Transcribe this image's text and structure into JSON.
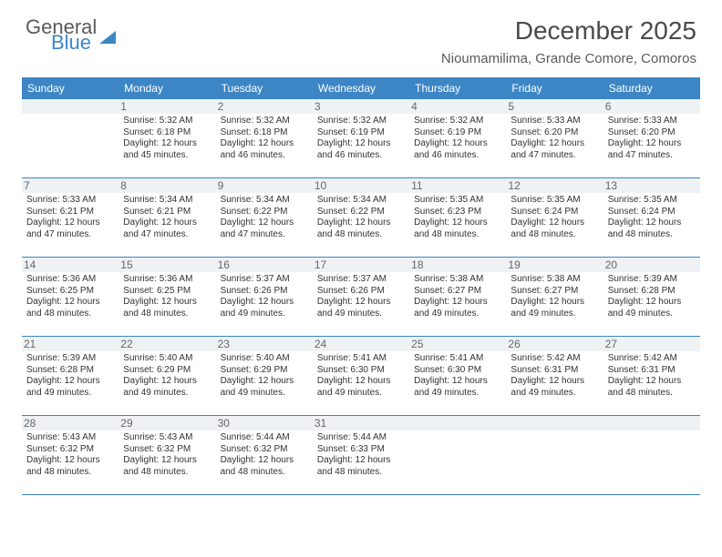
{
  "logo": {
    "word1": "General",
    "word2": "Blue"
  },
  "title": "December 2025",
  "location": "Nioumamilima, Grande Comore, Comoros",
  "colors": {
    "header_bg": "#3d86c6",
    "daynum_bg": "#eef2f5",
    "text": "#333333",
    "title_text": "#4a4a4a",
    "logo_gray": "#5a5a5a",
    "logo_blue": "#3d86c6"
  },
  "daysOfWeek": [
    "Sunday",
    "Monday",
    "Tuesday",
    "Wednesday",
    "Thursday",
    "Friday",
    "Saturday"
  ],
  "weeks": [
    [
      null,
      {
        "n": "1",
        "sr": "Sunrise: 5:32 AM",
        "ss": "Sunset: 6:18 PM",
        "d1": "Daylight: 12 hours",
        "d2": "and 45 minutes."
      },
      {
        "n": "2",
        "sr": "Sunrise: 5:32 AM",
        "ss": "Sunset: 6:18 PM",
        "d1": "Daylight: 12 hours",
        "d2": "and 46 minutes."
      },
      {
        "n": "3",
        "sr": "Sunrise: 5:32 AM",
        "ss": "Sunset: 6:19 PM",
        "d1": "Daylight: 12 hours",
        "d2": "and 46 minutes."
      },
      {
        "n": "4",
        "sr": "Sunrise: 5:32 AM",
        "ss": "Sunset: 6:19 PM",
        "d1": "Daylight: 12 hours",
        "d2": "and 46 minutes."
      },
      {
        "n": "5",
        "sr": "Sunrise: 5:33 AM",
        "ss": "Sunset: 6:20 PM",
        "d1": "Daylight: 12 hours",
        "d2": "and 47 minutes."
      },
      {
        "n": "6",
        "sr": "Sunrise: 5:33 AM",
        "ss": "Sunset: 6:20 PM",
        "d1": "Daylight: 12 hours",
        "d2": "and 47 minutes."
      }
    ],
    [
      {
        "n": "7",
        "sr": "Sunrise: 5:33 AM",
        "ss": "Sunset: 6:21 PM",
        "d1": "Daylight: 12 hours",
        "d2": "and 47 minutes."
      },
      {
        "n": "8",
        "sr": "Sunrise: 5:34 AM",
        "ss": "Sunset: 6:21 PM",
        "d1": "Daylight: 12 hours",
        "d2": "and 47 minutes."
      },
      {
        "n": "9",
        "sr": "Sunrise: 5:34 AM",
        "ss": "Sunset: 6:22 PM",
        "d1": "Daylight: 12 hours",
        "d2": "and 47 minutes."
      },
      {
        "n": "10",
        "sr": "Sunrise: 5:34 AM",
        "ss": "Sunset: 6:22 PM",
        "d1": "Daylight: 12 hours",
        "d2": "and 48 minutes."
      },
      {
        "n": "11",
        "sr": "Sunrise: 5:35 AM",
        "ss": "Sunset: 6:23 PM",
        "d1": "Daylight: 12 hours",
        "d2": "and 48 minutes."
      },
      {
        "n": "12",
        "sr": "Sunrise: 5:35 AM",
        "ss": "Sunset: 6:24 PM",
        "d1": "Daylight: 12 hours",
        "d2": "and 48 minutes."
      },
      {
        "n": "13",
        "sr": "Sunrise: 5:35 AM",
        "ss": "Sunset: 6:24 PM",
        "d1": "Daylight: 12 hours",
        "d2": "and 48 minutes."
      }
    ],
    [
      {
        "n": "14",
        "sr": "Sunrise: 5:36 AM",
        "ss": "Sunset: 6:25 PM",
        "d1": "Daylight: 12 hours",
        "d2": "and 48 minutes."
      },
      {
        "n": "15",
        "sr": "Sunrise: 5:36 AM",
        "ss": "Sunset: 6:25 PM",
        "d1": "Daylight: 12 hours",
        "d2": "and 48 minutes."
      },
      {
        "n": "16",
        "sr": "Sunrise: 5:37 AM",
        "ss": "Sunset: 6:26 PM",
        "d1": "Daylight: 12 hours",
        "d2": "and 49 minutes."
      },
      {
        "n": "17",
        "sr": "Sunrise: 5:37 AM",
        "ss": "Sunset: 6:26 PM",
        "d1": "Daylight: 12 hours",
        "d2": "and 49 minutes."
      },
      {
        "n": "18",
        "sr": "Sunrise: 5:38 AM",
        "ss": "Sunset: 6:27 PM",
        "d1": "Daylight: 12 hours",
        "d2": "and 49 minutes."
      },
      {
        "n": "19",
        "sr": "Sunrise: 5:38 AM",
        "ss": "Sunset: 6:27 PM",
        "d1": "Daylight: 12 hours",
        "d2": "and 49 minutes."
      },
      {
        "n": "20",
        "sr": "Sunrise: 5:39 AM",
        "ss": "Sunset: 6:28 PM",
        "d1": "Daylight: 12 hours",
        "d2": "and 49 minutes."
      }
    ],
    [
      {
        "n": "21",
        "sr": "Sunrise: 5:39 AM",
        "ss": "Sunset: 6:28 PM",
        "d1": "Daylight: 12 hours",
        "d2": "and 49 minutes."
      },
      {
        "n": "22",
        "sr": "Sunrise: 5:40 AM",
        "ss": "Sunset: 6:29 PM",
        "d1": "Daylight: 12 hours",
        "d2": "and 49 minutes."
      },
      {
        "n": "23",
        "sr": "Sunrise: 5:40 AM",
        "ss": "Sunset: 6:29 PM",
        "d1": "Daylight: 12 hours",
        "d2": "and 49 minutes."
      },
      {
        "n": "24",
        "sr": "Sunrise: 5:41 AM",
        "ss": "Sunset: 6:30 PM",
        "d1": "Daylight: 12 hours",
        "d2": "and 49 minutes."
      },
      {
        "n": "25",
        "sr": "Sunrise: 5:41 AM",
        "ss": "Sunset: 6:30 PM",
        "d1": "Daylight: 12 hours",
        "d2": "and 49 minutes."
      },
      {
        "n": "26",
        "sr": "Sunrise: 5:42 AM",
        "ss": "Sunset: 6:31 PM",
        "d1": "Daylight: 12 hours",
        "d2": "and 49 minutes."
      },
      {
        "n": "27",
        "sr": "Sunrise: 5:42 AM",
        "ss": "Sunset: 6:31 PM",
        "d1": "Daylight: 12 hours",
        "d2": "and 48 minutes."
      }
    ],
    [
      {
        "n": "28",
        "sr": "Sunrise: 5:43 AM",
        "ss": "Sunset: 6:32 PM",
        "d1": "Daylight: 12 hours",
        "d2": "and 48 minutes."
      },
      {
        "n": "29",
        "sr": "Sunrise: 5:43 AM",
        "ss": "Sunset: 6:32 PM",
        "d1": "Daylight: 12 hours",
        "d2": "and 48 minutes."
      },
      {
        "n": "30",
        "sr": "Sunrise: 5:44 AM",
        "ss": "Sunset: 6:32 PM",
        "d1": "Daylight: 12 hours",
        "d2": "and 48 minutes."
      },
      {
        "n": "31",
        "sr": "Sunrise: 5:44 AM",
        "ss": "Sunset: 6:33 PM",
        "d1": "Daylight: 12 hours",
        "d2": "and 48 minutes."
      },
      null,
      null,
      null
    ]
  ]
}
